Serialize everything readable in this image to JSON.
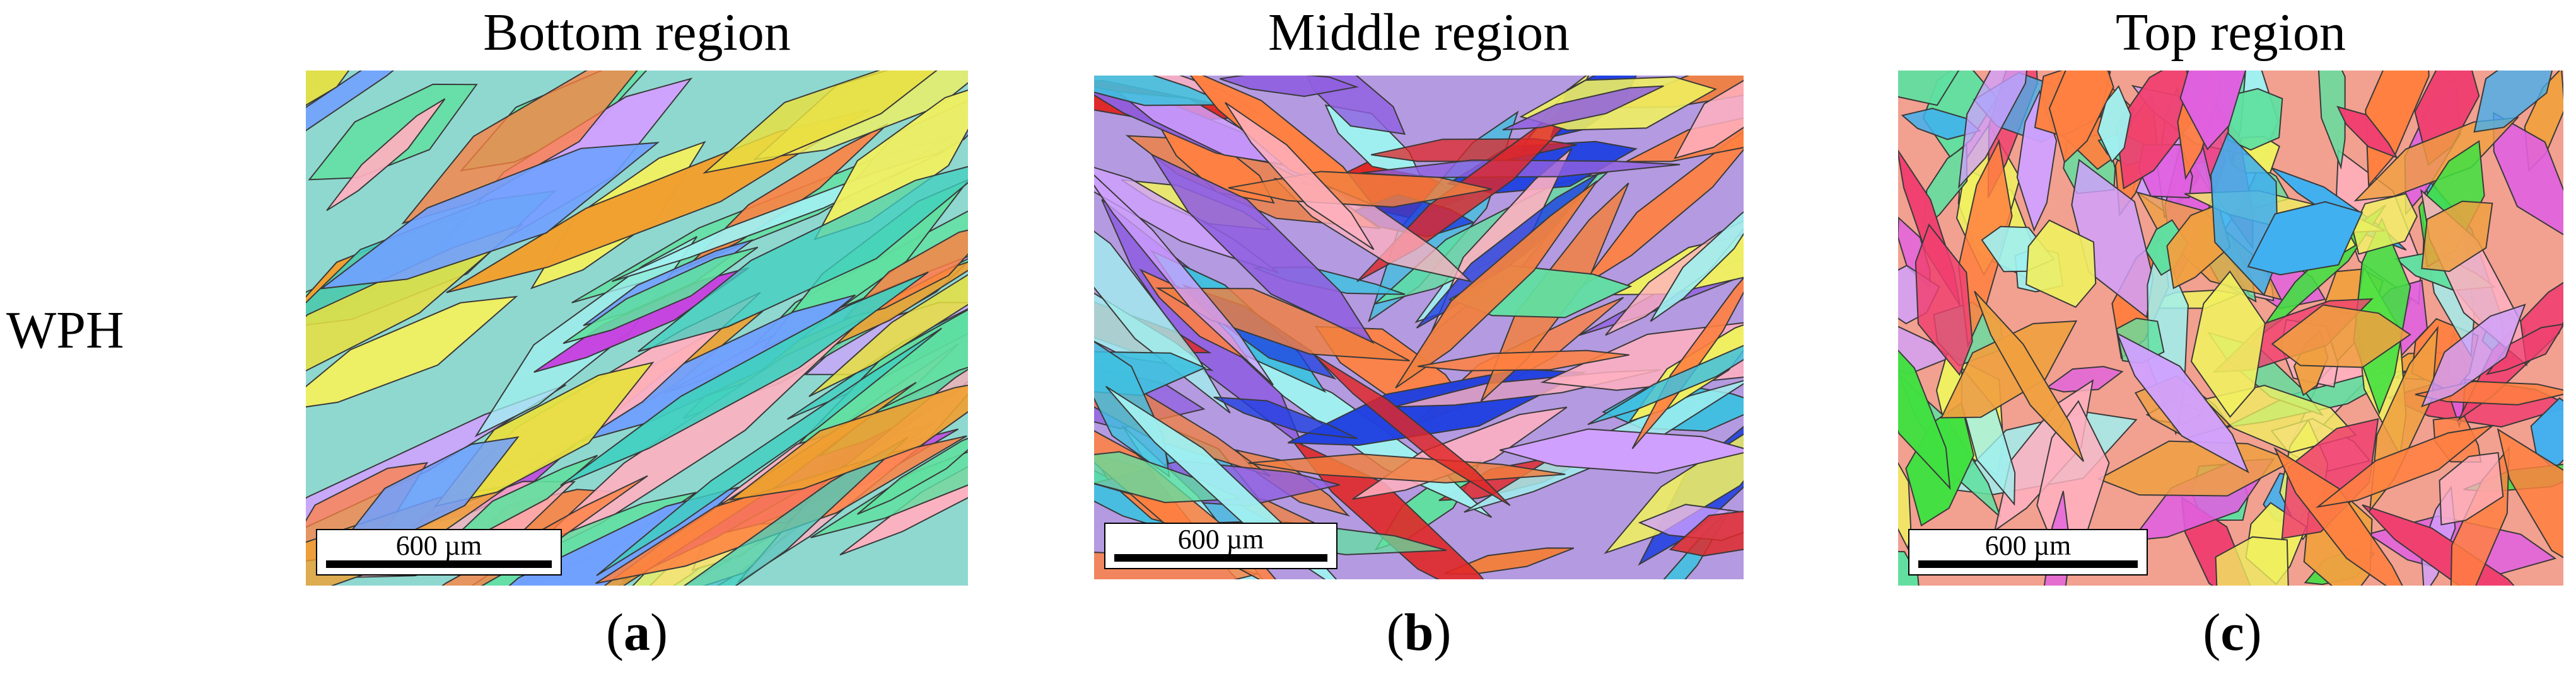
{
  "row_label": "WPH",
  "panels": [
    {
      "title": "Bottom region",
      "scale_label": "600 µm",
      "caption_letter": "a",
      "dominant_colors": [
        "#c640e0",
        "#f0a030",
        "#40d0c0",
        "#e8e040",
        "#70a0ff"
      ]
    },
    {
      "title": "Middle region",
      "scale_label": "600 µm",
      "caption_letter": "b",
      "dominant_colors": [
        "#e02828",
        "#2040e0",
        "#f08040",
        "#9060e0",
        "#40c0e0"
      ]
    },
    {
      "title": "Top region",
      "scale_label": "600 µm",
      "caption_letter": "c",
      "dominant_colors": [
        "#f04070",
        "#40e040",
        "#e060e0",
        "#f0a040",
        "#40b0f0"
      ]
    }
  ]
}
